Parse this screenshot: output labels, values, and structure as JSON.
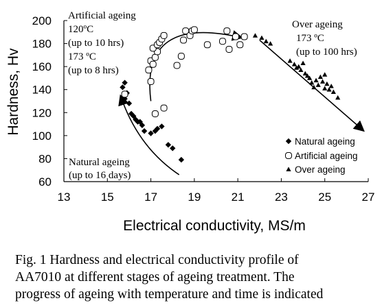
{
  "chart_data": {
    "type": "scatter",
    "xlabel": "Electrical conductivity, MS/m",
    "ylabel": "Hardness, Hv",
    "xlim": [
      13,
      27
    ],
    "ylim": [
      60,
      200
    ],
    "x_ticks": [
      "13",
      "15",
      "17",
      "19",
      "21",
      "23",
      "25",
      "27"
    ],
    "y_ticks": [
      "60",
      "80",
      "100",
      "120",
      "140",
      "160",
      "180",
      "200"
    ],
    "grid": false,
    "legend_position": "lower-right",
    "series": [
      {
        "name": "Natural ageing",
        "marker": "diamond",
        "points": [
          [
            15.8,
            146
          ],
          [
            15.7,
            142
          ],
          [
            15.9,
            137
          ],
          [
            15.8,
            132
          ],
          [
            16.0,
            128
          ],
          [
            16.1,
            119
          ],
          [
            16.2,
            117
          ],
          [
            16.3,
            114
          ],
          [
            16.4,
            112
          ],
          [
            16.6,
            109
          ],
          [
            16.5,
            112
          ],
          [
            16.7,
            104
          ],
          [
            17.0,
            102
          ],
          [
            17.2,
            104
          ],
          [
            17.3,
            106
          ],
          [
            17.5,
            108
          ],
          [
            17.8,
            92
          ],
          [
            18.0,
            89
          ],
          [
            18.4,
            79
          ]
        ]
      },
      {
        "name": "Artificial ageing",
        "marker": "open-circle",
        "points": [
          [
            15.8,
            136
          ],
          [
            17.0,
            147
          ],
          [
            16.9,
            157
          ],
          [
            17.0,
            165
          ],
          [
            17.1,
            162
          ],
          [
            17.2,
            168
          ],
          [
            17.3,
            173
          ],
          [
            17.1,
            176
          ],
          [
            17.3,
            179
          ],
          [
            17.4,
            181
          ],
          [
            17.5,
            184
          ],
          [
            17.6,
            187
          ],
          [
            17.2,
            119
          ],
          [
            17.6,
            124
          ],
          [
            18.2,
            161
          ],
          [
            18.4,
            169
          ],
          [
            18.5,
            183
          ],
          [
            18.6,
            191
          ],
          [
            18.8,
            187
          ],
          [
            18.9,
            191
          ],
          [
            19.0,
            192
          ],
          [
            19.6,
            179
          ],
          [
            20.3,
            182
          ],
          [
            20.5,
            191
          ],
          [
            20.6,
            175
          ],
          [
            20.9,
            186
          ],
          [
            21.1,
            179
          ],
          [
            21.3,
            186
          ]
        ]
      },
      {
        "name": "Over ageing",
        "marker": "triangle",
        "points": [
          [
            21.8,
            187
          ],
          [
            22.1,
            185
          ],
          [
            22.3,
            182
          ],
          [
            22.5,
            180
          ],
          [
            23.4,
            165
          ],
          [
            23.6,
            162
          ],
          [
            23.8,
            160
          ],
          [
            23.9,
            157
          ],
          [
            24.0,
            163
          ],
          [
            24.1,
            154
          ],
          [
            24.3,
            150
          ],
          [
            24.4,
            146
          ],
          [
            24.5,
            142
          ],
          [
            24.6,
            148
          ],
          [
            24.7,
            144
          ],
          [
            24.8,
            151
          ],
          [
            24.9,
            147
          ],
          [
            25.0,
            141
          ],
          [
            25.1,
            145
          ],
          [
            25.2,
            140
          ],
          [
            25.3,
            143
          ],
          [
            25.4,
            138
          ],
          [
            25.6,
            133
          ],
          [
            24.2,
            152
          ],
          [
            23.7,
            159
          ],
          [
            25.0,
            153
          ]
        ]
      }
    ],
    "arrows": [
      {
        "from": [
          18.3,
          66
        ],
        "via": [
          16.4,
          90
        ],
        "to": [
          15.6,
          135
        ]
      },
      {
        "from": [
          17.0,
          130
        ],
        "via": [
          16.5,
          206
        ],
        "to": [
          21.2,
          185
        ]
      },
      {
        "from": [
          22.0,
          183
        ],
        "to": [
          26.8,
          104
        ]
      }
    ],
    "annotations": {
      "artificial": [
        "Artificial ageing",
        "120ºC",
        "(up to 10 hrs)",
        "173 ºC",
        "(up to 8 hrs)"
      ],
      "over": [
        "Over ageing",
        "173 ºC",
        "(up to 100 hrs)"
      ],
      "natural": [
        "Natural ageing",
        "(up to 16 days)"
      ]
    }
  },
  "caption": [
    "Fig. 1 Hardness and electrical conductivity profile of",
    "AA7010 at different stages of ageing treatment. The",
    "progress of ageing with temperature and time is indicated"
  ]
}
